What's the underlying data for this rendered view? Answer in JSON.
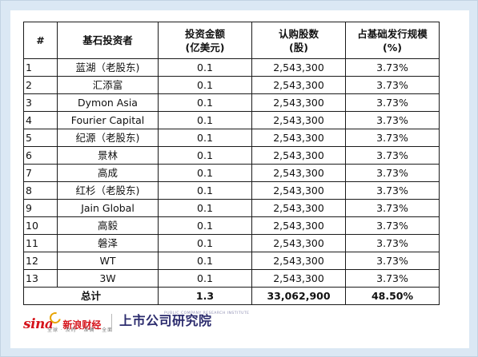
{
  "table": {
    "headers": {
      "index": "#",
      "investor": "基石投资者",
      "amount_line1": "投资金额",
      "amount_line2": "(亿美元)",
      "shares_line1": "认购股数",
      "shares_line2": "(股)",
      "pct_line1": "占基础发行规模",
      "pct_line2": "(%)"
    },
    "rows": [
      {
        "index": "1",
        "investor": "蓝湖（老股东)",
        "amount": "0.1",
        "shares": "2,543,300",
        "pct": "3.73%"
      },
      {
        "index": "2",
        "investor": "汇添富",
        "amount": "0.1",
        "shares": "2,543,300",
        "pct": "3.73%"
      },
      {
        "index": "3",
        "investor": "Dymon Asia",
        "amount": "0.1",
        "shares": "2,543,300",
        "pct": "3.73%"
      },
      {
        "index": "4",
        "investor": "Fourier Capital",
        "amount": "0.1",
        "shares": "2,543,300",
        "pct": "3.73%"
      },
      {
        "index": "5",
        "investor": "纪源（老股东)",
        "amount": "0.1",
        "shares": "2,543,300",
        "pct": "3.73%"
      },
      {
        "index": "6",
        "investor": "景林",
        "amount": "0.1",
        "shares": "2,543,300",
        "pct": "3.73%"
      },
      {
        "index": "7",
        "investor": "高成",
        "amount": "0.1",
        "shares": "2,543,300",
        "pct": "3.73%"
      },
      {
        "index": "8",
        "investor": "红杉（老股东)",
        "amount": "0.1",
        "shares": "2,543,300",
        "pct": "3.73%"
      },
      {
        "index": "9",
        "investor": "Jain Global",
        "amount": "0.1",
        "shares": "2,543,300",
        "pct": "3.73%"
      },
      {
        "index": "10",
        "investor": "高毅",
        "amount": "0.1",
        "shares": "2,543,300",
        "pct": "3.73%"
      },
      {
        "index": "11",
        "investor": "磐泽",
        "amount": "0.1",
        "shares": "2,543,300",
        "pct": "3.73%"
      },
      {
        "index": "12",
        "investor": "WT",
        "amount": "0.1",
        "shares": "2,543,300",
        "pct": "3.73%"
      },
      {
        "index": "13",
        "investor": "3W",
        "amount": "0.1",
        "shares": "2,543,300",
        "pct": "3.73%"
      }
    ],
    "total": {
      "label": "总计",
      "amount": "1.3",
      "shares": "33,062,900",
      "pct": "48.50%"
    }
  },
  "footer": {
    "sina_logo_text": "sina",
    "sina_brand": "新浪财经",
    "sina_tagline": "全球 · 及时 · 准确 · 全面",
    "institute_name": "上市公司研究院",
    "institute_en": "PUBLIC COMPANY RESEARCH INSTITUTE"
  }
}
